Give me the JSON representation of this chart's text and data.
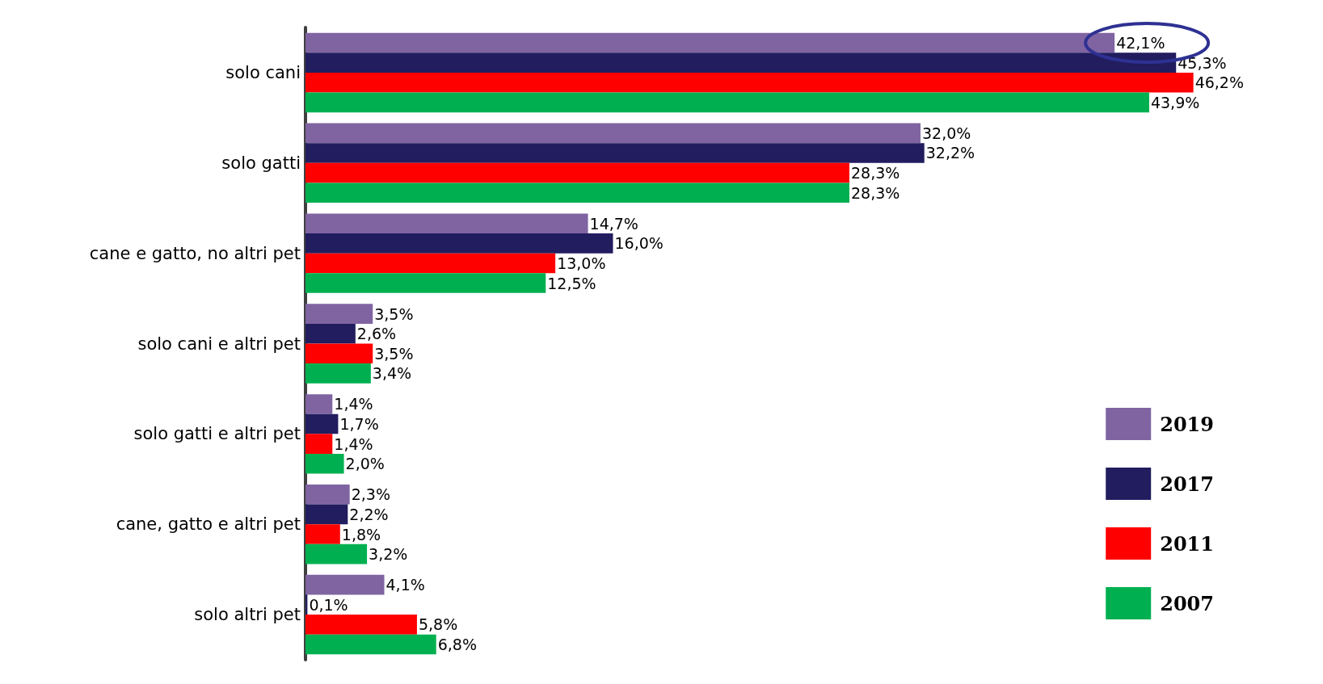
{
  "chart_data": {
    "type": "bar",
    "orientation": "horizontal",
    "categories": [
      "solo cani",
      "solo gatti",
      "cane e gatto, no altri pet",
      "solo cani e altri pet",
      "solo gatti e altri pet",
      "cane, gatto e altri pet",
      "solo altri pet"
    ],
    "series": [
      {
        "name": "2019",
        "color": "#8064a2",
        "values": [
          42.1,
          32.0,
          14.7,
          3.5,
          1.4,
          2.3,
          4.1
        ],
        "value_labels": [
          "42,1%",
          "32,0%",
          "14,7%",
          "3,5%",
          "1,4%",
          "2,3%",
          "4,1%"
        ]
      },
      {
        "name": "2017",
        "color": "#211d5f",
        "values": [
          45.3,
          32.2,
          16.0,
          2.6,
          1.7,
          2.2,
          0.1
        ],
        "value_labels": [
          "45,3%",
          "32,2%",
          "16,0%",
          "2,6%",
          "1,7%",
          "2,2%",
          "0,1%"
        ]
      },
      {
        "name": "2011",
        "color": "#ff0000",
        "values": [
          46.2,
          28.3,
          13.0,
          3.5,
          1.4,
          1.8,
          5.8
        ],
        "value_labels": [
          "46,2%",
          "28,3%",
          "13,0%",
          "3,5%",
          "1,4%",
          "1,8%",
          "5,8%"
        ]
      },
      {
        "name": "2007",
        "color": "#00b050",
        "values": [
          43.9,
          28.3,
          12.5,
          3.4,
          2.0,
          3.2,
          6.8
        ],
        "value_labels": [
          "43,9%",
          "28,3%",
          "12,5%",
          "3,4%",
          "2,0%",
          "3,2%",
          "6,8%"
        ]
      }
    ],
    "legend": "bottom right"
  }
}
